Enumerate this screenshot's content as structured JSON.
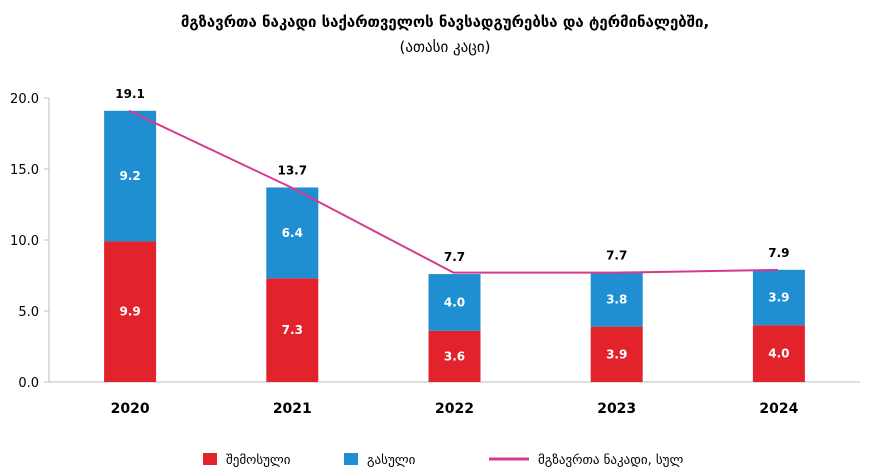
{
  "chart_data": {
    "type": "bar",
    "title": "მგზავრთა ნაკადი საქართველოს ნავსადგურებსა და ტერმინალებში,",
    "subtitle": "(ათასი კაცი)",
    "categories": [
      "2020",
      "2021",
      "2022",
      "2023",
      "2024"
    ],
    "stacked": true,
    "ylim": [
      0,
      20
    ],
    "yticks": [
      "0.0",
      "5.0",
      "10.0",
      "15.0",
      "20.0"
    ],
    "grid": false,
    "legend_position": "bottom",
    "series": [
      {
        "name": "შემოსული",
        "type": "bar",
        "color": "#e3232b",
        "values": [
          9.9,
          7.3,
          3.6,
          3.9,
          4.0
        ],
        "labels": [
          "9.9",
          "7.3",
          "3.6",
          "3.9",
          "4.0"
        ]
      },
      {
        "name": "გასული",
        "type": "bar",
        "color": "#1f8fd1",
        "values": [
          9.2,
          6.4,
          4.0,
          3.8,
          3.9
        ],
        "labels": [
          "9.2",
          "6.4",
          "4.0",
          "3.8",
          "3.9"
        ]
      },
      {
        "name": "მგზავრთა ნაკადი, სულ",
        "type": "line",
        "color": "#d63a8e",
        "values": [
          19.1,
          13.7,
          7.7,
          7.7,
          7.9
        ],
        "labels": [
          "19.1",
          "13.7",
          "7.7",
          "7.7",
          "7.9"
        ]
      }
    ]
  }
}
